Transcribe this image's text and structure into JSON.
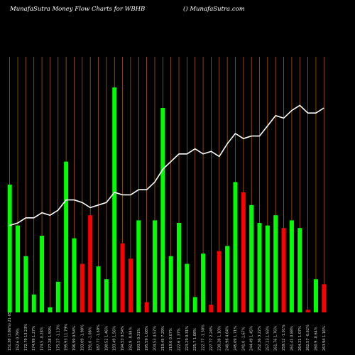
{
  "header": {
    "left": "MunafaSutra  Money Flow  Charts for WBHB",
    "right": "() MunafaSutra.com"
  },
  "chart_data": {
    "type": "bar",
    "title": "MunafaSutra  Money Flow  Charts for WBHB",
    "colors": {
      "up": "#00ff00",
      "down": "#ff0000",
      "line": "#ffffff",
      "grid": "#ff8c00",
      "background": "#000000"
    },
    "ylim": [
      0,
      100
    ],
    "categories": [
      "151.38 (3.86%) 21-05",
      "152.6 0.79%",
      "172.79 13.23%",
      "174.99 1.27%",
      "174.5 -0.28%",
      "177.28 1.59%",
      "175.27 -1.13%",
      "195.93 11.79%",
      "196.99 0.54%",
      "193.09 -1.98%",
      "191.0 -1.08%",
      "187.77 -1.69%",
      "190.52 1.46%",
      "193.49 1.56%",
      "194.53 0.54%",
      "192.9 -0.84%",
      "193.5 0.31%",
      "195.59 1.08%",
      "204.53 4.57%",
      "219.45 7.29%",
      "219.6 0.07%",
      "222.6 1.37%",
      "223.29 0.31%",
      "225.7 1.08%",
      "222.77 -1.30%",
      "227.77 2.24%",
      "230.28 1.10%",
      "240.96 4.64%",
      "245.09 1.71%",
      "241.0 -1.67%",
      "244.49 1.45%",
      "252.36 3.22%",
      "257.23 1.93%",
      "261.76 1.76%",
      "259.12 -1.01%",
      "261.41 0.88%",
      "264.21 1.07%",
      "262.57 -0.62%",
      "260.9 -0.64%",
      "263.94 1.16%"
    ],
    "values": [
      50,
      34,
      22,
      7,
      30,
      2,
      12,
      59,
      29,
      19,
      38,
      18,
      13,
      88,
      27,
      21,
      36,
      4,
      36,
      80,
      22,
      35,
      19,
      6,
      23,
      3,
      24,
      26,
      51,
      47,
      42,
      35,
      34,
      38,
      33,
      36,
      33,
      1,
      13,
      11
    ],
    "directions": [
      "up",
      "up",
      "up",
      "up",
      "up",
      "up",
      "up",
      "up",
      "up",
      "down",
      "down",
      "up",
      "up",
      "up",
      "down",
      "down",
      "up",
      "down",
      "up",
      "up",
      "up",
      "up",
      "up",
      "up",
      "up",
      "down",
      "down",
      "up",
      "up",
      "down",
      "up",
      "up",
      "up",
      "up",
      "down",
      "up",
      "up",
      "down",
      "up",
      "down"
    ],
    "line": [
      34,
      35,
      37,
      37,
      39,
      38,
      40,
      44,
      44,
      43,
      41,
      42,
      43,
      47,
      46,
      46,
      48,
      48,
      51,
      56,
      59,
      62,
      62,
      64,
      62,
      63,
      61,
      66,
      70,
      68,
      69,
      69,
      73,
      77,
      76,
      79,
      81,
      78,
      78,
      80
    ]
  }
}
